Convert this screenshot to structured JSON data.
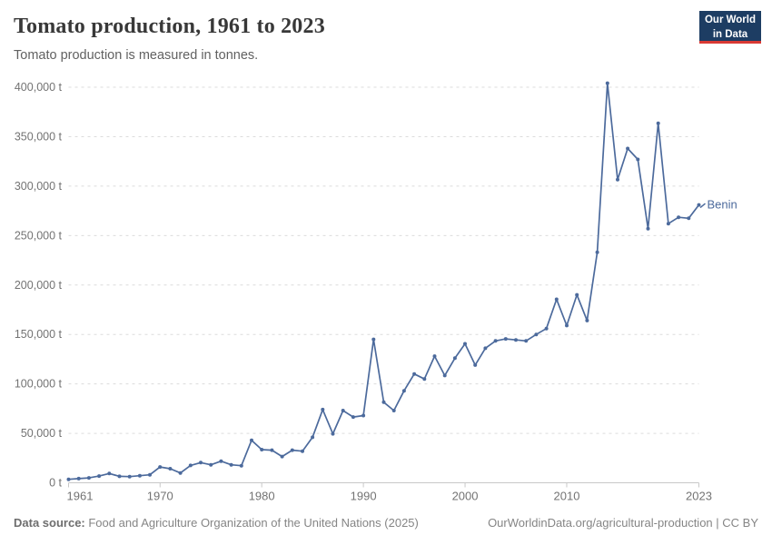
{
  "header": {
    "title": "Tomato production, 1961 to 2023",
    "subtitle": "Tomato production is measured in tonnes.",
    "logo": {
      "line1": "Our World",
      "line2": "in Data",
      "bg_color": "#1d3d63",
      "accent_color": "#d93a34"
    }
  },
  "chart_data": {
    "type": "line",
    "title": "Tomato production, 1961 to 2023",
    "subtitle": "Tomato production is measured in tonnes.",
    "xlabel": "",
    "ylabel": "tonnes",
    "xlim": [
      1961,
      2023
    ],
    "ylim": [
      0,
      400000
    ],
    "grid": "horizontal-dashed",
    "legend_position": "end-of-line",
    "x_ticks": [
      1961,
      1970,
      1980,
      1990,
      2000,
      2010,
      2023
    ],
    "y_ticks": [
      0,
      50000,
      100000,
      150000,
      200000,
      250000,
      300000,
      350000,
      400000
    ],
    "y_tick_suffix": " t",
    "series": [
      {
        "name": "Benin",
        "color": "#4c6a9c",
        "x": [
          1961,
          1962,
          1963,
          1964,
          1965,
          1966,
          1967,
          1968,
          1969,
          1970,
          1971,
          1972,
          1973,
          1974,
          1975,
          1976,
          1977,
          1978,
          1979,
          1980,
          1981,
          1982,
          1983,
          1984,
          1985,
          1986,
          1987,
          1988,
          1989,
          1990,
          1991,
          1992,
          1993,
          1994,
          1995,
          1996,
          1997,
          1998,
          1999,
          2000,
          2001,
          2002,
          2003,
          2004,
          2005,
          2006,
          2007,
          2008,
          2009,
          2010,
          2011,
          2012,
          2013,
          2014,
          2015,
          2016,
          2017,
          2018,
          2019,
          2020,
          2021,
          2022,
          2023
        ],
        "values": [
          3500,
          4200,
          5000,
          6800,
          9400,
          6500,
          6200,
          7200,
          8100,
          16000,
          14200,
          9900,
          17500,
          20400,
          18200,
          21900,
          18200,
          17300,
          43000,
          33500,
          33000,
          26500,
          33000,
          32000,
          46000,
          74000,
          49500,
          73000,
          66500,
          68000,
          145000,
          81500,
          73000,
          93000,
          110000,
          105000,
          128000,
          108500,
          126000,
          140500,
          119000,
          136000,
          143500,
          145500,
          144500,
          143500,
          150000,
          156000,
          185500,
          159000,
          190000,
          164000,
          233000,
          404000,
          306500,
          338000,
          327000,
          257000,
          363500,
          262000,
          268500,
          267500,
          281000
        ]
      }
    ],
    "style": {
      "grid_color": "#dcdcdc",
      "axis_color": "#c8c8c8",
      "tick_label_color": "#737373"
    }
  },
  "footer": {
    "source_label": "Data source:",
    "source_text": " Food and Agriculture Organization of the United Nations (2025)",
    "credit": "OurWorldinData.org/agricultural-production | CC BY"
  }
}
